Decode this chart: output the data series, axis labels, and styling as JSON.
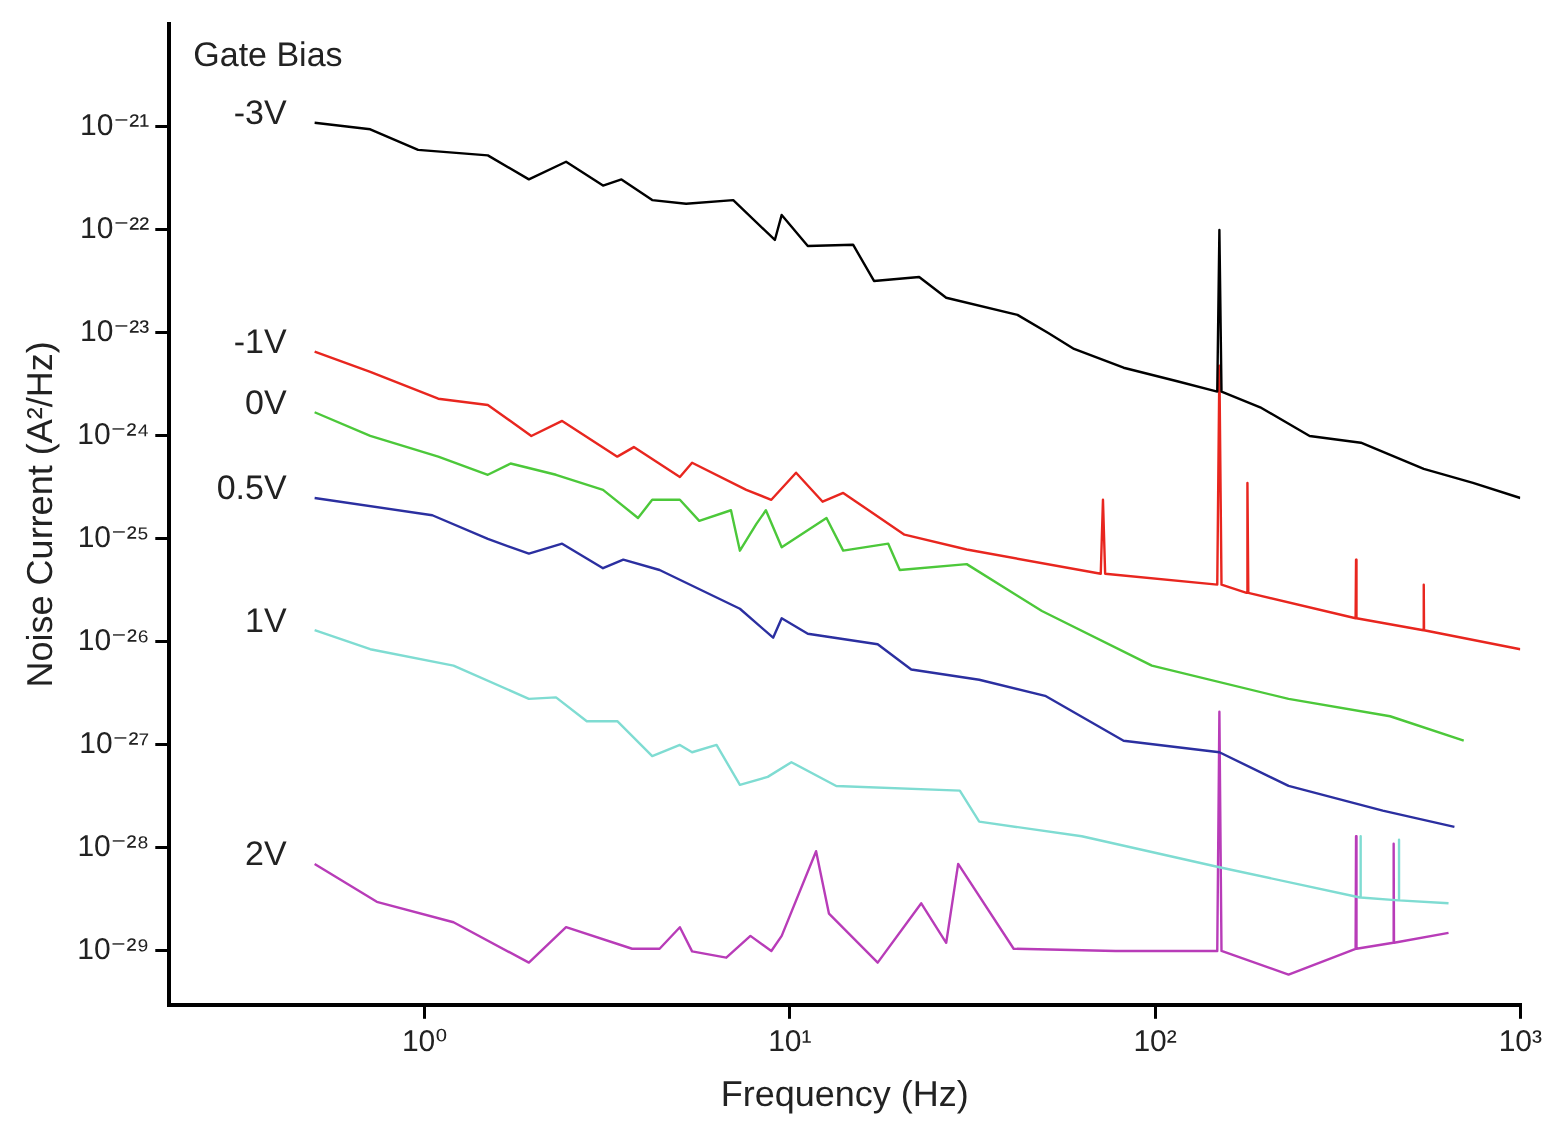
{
  "chart_data": {
    "type": "line",
    "xlabel": "Frequency (Hz)",
    "ylabel": "Noise Current (A²/Hz)",
    "legend_title": "Gate Bias",
    "log": "xy",
    "grid": false,
    "marker": "none",
    "line_style": "solid",
    "xlim": [
      0.2,
      1000
    ],
    "xticks": [
      {
        "value": 1,
        "label": "10⁰"
      },
      {
        "value": 10,
        "label": "10¹"
      },
      {
        "value": 100,
        "label": "10²"
      },
      {
        "value": 1000,
        "label": "10³"
      }
    ],
    "ylim": [
      3e-30,
      1e-20
    ],
    "yticks": [
      {
        "value": 1e-21,
        "label": "10⁻²¹"
      },
      {
        "value": 1e-22,
        "label": "10⁻²²"
      },
      {
        "value": 1e-23,
        "label": "10⁻²³"
      },
      {
        "value": 1e-24,
        "label": "10⁻²⁴"
      },
      {
        "value": 1e-25,
        "label": "10⁻²⁵"
      },
      {
        "value": 1e-26,
        "label": "10⁻²⁶"
      },
      {
        "value": 1e-27,
        "label": "10⁻²⁷"
      },
      {
        "value": 1e-28,
        "label": "10⁻²⁸"
      },
      {
        "value": 1e-29,
        "label": "10⁻²⁹"
      }
    ],
    "series": [
      {
        "name": "-3V",
        "color": "#000000",
        "x": [
          0.5,
          0.71,
          0.96,
          1.49,
          1.93,
          2.44,
          3.08,
          3.46,
          4.2,
          5.2,
          7.0,
          9.1,
          9.5,
          11.2,
          14.9,
          17,
          22.6,
          26.8,
          42,
          51,
          60,
          82,
          115,
          148,
          150,
          152,
          194,
          265,
          366,
          544,
          742,
          1000
        ],
        "values": [
          1.1e-21,
          9.5e-22,
          6e-22,
          5.3e-22,
          3.1e-22,
          4.6e-22,
          2.7e-22,
          3.1e-22,
          1.95e-22,
          1.8e-22,
          1.95e-22,
          8e-23,
          1.4e-22,
          7e-23,
          7.2e-23,
          3.2e-23,
          3.5e-23,
          2.2e-23,
          1.5e-23,
          1e-23,
          7e-24,
          4.6e-24,
          3.4e-24,
          2.7e-24,
          1e-22,
          2.7e-24,
          1.9e-24,
          1e-24,
          8.6e-25,
          4.8e-25,
          3.5e-25,
          2.5e-25
        ]
      },
      {
        "name": "-1V",
        "color": "#e8261f",
        "x": [
          0.5,
          0.71,
          1.09,
          1.49,
          1.96,
          2.38,
          3.37,
          3.74,
          5.0,
          5.4,
          7.6,
          8.9,
          10.4,
          12.3,
          14,
          20.6,
          30.5,
          71,
          72,
          73,
          148,
          150,
          152,
          178,
          179,
          180,
          354,
          355,
          356,
          543,
          544,
          545,
          1000
        ],
        "values": [
          6.6e-24,
          4.2e-24,
          2.3e-24,
          2e-24,
          1e-24,
          1.4e-24,
          6.3e-25,
          7.8e-25,
          4e-25,
          5.5e-25,
          3e-25,
          2.4e-25,
          4.4e-25,
          2.3e-25,
          2.8e-25,
          1.1e-25,
          7.9e-26,
          4.6e-26,
          2.4e-25,
          4.6e-26,
          3.6e-26,
          4.8e-24,
          3.6e-26,
          3e-26,
          3.5e-25,
          3e-26,
          1.7e-26,
          6.3e-26,
          1.7e-26,
          1.3e-26,
          3.6e-26,
          1.3e-26,
          8.5e-27
        ]
      },
      {
        "name": "0V",
        "color": "#4cc83a",
        "x": [
          0.5,
          0.71,
          1.09,
          1.49,
          1.72,
          2.29,
          3.08,
          3.84,
          4.2,
          5.0,
          5.65,
          6.9,
          7.3,
          8.1,
          8.6,
          9.5,
          12.6,
          14,
          18.6,
          20,
          30.5,
          49,
          98,
          232,
          440,
          700
        ],
        "values": [
          1.7e-24,
          1e-24,
          6.3e-25,
          4.2e-25,
          5.4e-25,
          4.2e-25,
          3e-25,
          1.6e-25,
          2.4e-25,
          2.4e-25,
          1.5e-25,
          1.9e-25,
          7.7e-26,
          1.4e-25,
          1.9e-25,
          8.3e-26,
          1.6e-25,
          7.7e-26,
          9e-26,
          5e-26,
          5.7e-26,
          2e-26,
          5.9e-27,
          2.8e-27,
          1.9e-27,
          1.1e-27
        ]
      },
      {
        "name": "0.5V",
        "color": "#2b2fa0",
        "x": [
          0.5,
          1.05,
          1.49,
          1.93,
          2.38,
          3.08,
          3.5,
          4.4,
          7.3,
          9,
          9.5,
          11.2,
          17.4,
          21.5,
          33,
          50,
          82,
          150,
          232,
          420,
          660
        ],
        "values": [
          2.5e-25,
          1.7e-25,
          1e-25,
          7.2e-26,
          9e-26,
          5.2e-26,
          6.3e-26,
          5e-26,
          2.1e-26,
          1.1e-26,
          1.7e-26,
          1.2e-26,
          9.5e-27,
          5.4e-27,
          4.3e-27,
          3e-27,
          1.1e-27,
          8.5e-28,
          4e-28,
          2.3e-28,
          1.6e-28
        ]
      },
      {
        "name": "1V",
        "color": "#7fdcd2",
        "x": [
          0.5,
          0.71,
          1.2,
          1.93,
          2.29,
          2.78,
          3.37,
          4.2,
          5.0,
          5.4,
          6.3,
          7.3,
          8.7,
          10.1,
          13.4,
          29.2,
          33,
          63,
          150,
          364,
          365,
          366,
          464,
          465,
          466,
          636
        ],
        "values": [
          1.3e-26,
          8.5e-27,
          5.9e-27,
          2.8e-27,
          2.9e-27,
          1.7e-27,
          1.7e-27,
          7.8e-28,
          1e-27,
          8.5e-28,
          1e-27,
          4.1e-28,
          4.9e-28,
          6.8e-28,
          4e-28,
          3.6e-28,
          1.8e-28,
          1.3e-28,
          6.5e-29,
          3.3e-29,
          1.3e-28,
          3.3e-29,
          3.1e-29,
          1.2e-28,
          3.1e-29,
          2.9e-29
        ]
      },
      {
        "name": "2V",
        "color": "#b83cb8",
        "x": [
          0.5,
          0.74,
          1.2,
          1.93,
          2.44,
          3.7,
          4.4,
          5.0,
          5.4,
          6.7,
          7.8,
          8.9,
          9.5,
          11.8,
          12.8,
          17.4,
          22.9,
          26.8,
          28.9,
          41,
          78,
          148,
          150,
          152,
          232,
          354,
          355,
          356,
          449,
          450,
          451,
          636
        ],
        "values": [
          7e-29,
          3e-29,
          1.9e-29,
          7.7e-30,
          1.7e-29,
          1.05e-29,
          1.05e-29,
          1.7e-29,
          9.9e-30,
          8.6e-30,
          1.4e-29,
          1e-29,
          1.4e-29,
          9.3e-29,
          2.3e-29,
          7.7e-30,
          2.9e-29,
          1.2e-29,
          7e-29,
          1.05e-29,
          1e-29,
          1e-29,
          2.1e-27,
          1e-29,
          5.9e-30,
          1.05e-29,
          1.3e-28,
          1.05e-29,
          1.2e-29,
          1.1e-28,
          1.2e-29,
          1.5e-29
        ]
      }
    ]
  }
}
